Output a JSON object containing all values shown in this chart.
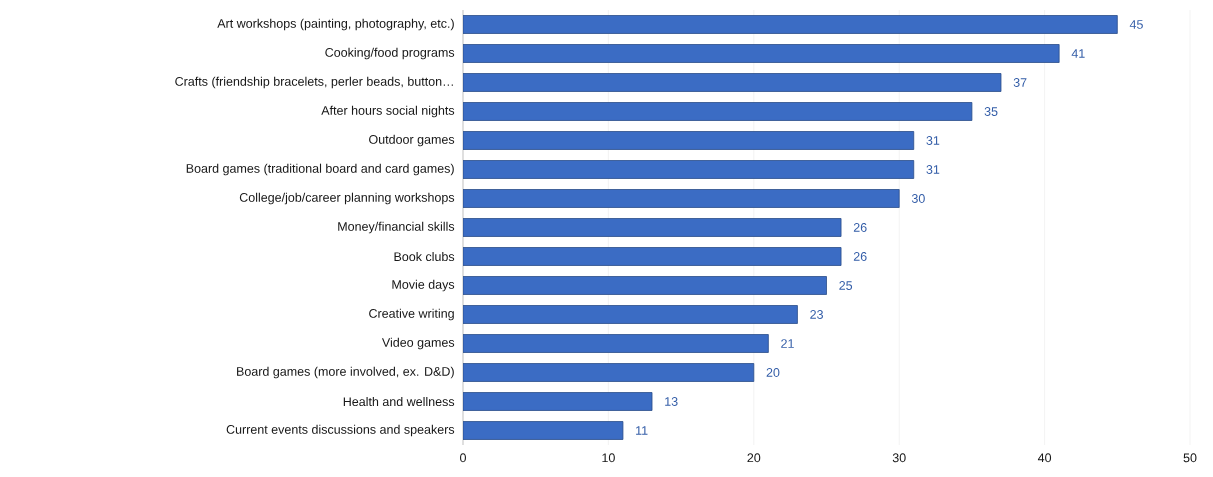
{
  "chart_data": {
    "type": "bar",
    "orientation": "horizontal",
    "categories": [
      "Art workshops (painting, photography, etc.)",
      "Cooking/food programs",
      "Crafts (friendship bracelets, perler beads, button…",
      "After hours social nights",
      "Outdoor games",
      "Board games (traditional board and card games)",
      "College/job/career planning workshops",
      "Money/financial skills",
      "Book clubs",
      "Movie days",
      "Creative writing",
      "Video games",
      "Board games (more involved, ex. D&D)",
      "Health and wellness",
      "Current events discussions and speakers"
    ],
    "values": [
      45,
      41,
      37,
      35,
      31,
      31,
      30,
      26,
      26,
      25,
      23,
      21,
      20,
      13,
      11
    ],
    "color": "#3b6cc4",
    "xlim": [
      0,
      50
    ],
    "xticks": [
      0,
      10,
      20,
      30,
      40,
      50
    ],
    "grid": "x",
    "data_labels": true
  }
}
